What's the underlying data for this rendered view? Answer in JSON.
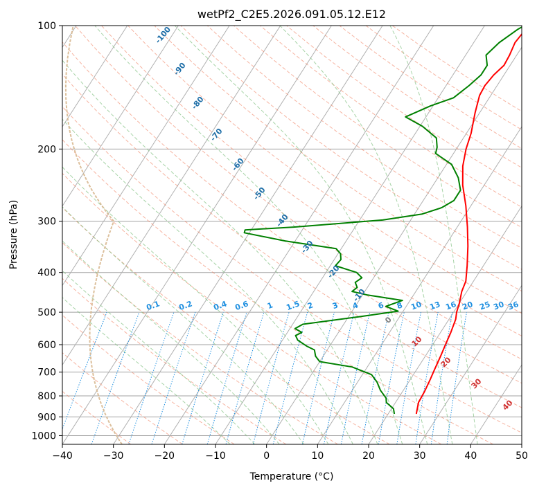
{
  "chart_data": {
    "type": "line",
    "title": "wetPf2_C2E5.2026.091.05.12.E12",
    "xlabel": "Temperature (°C)",
    "ylabel": "Pressure (hPa)",
    "xlim": [
      -40,
      50
    ],
    "ylim": [
      1050,
      100
    ],
    "y_scale": "log",
    "grid": true,
    "x_ticks": [
      "−40",
      "−30",
      "−20",
      "−10",
      "0",
      "10",
      "20",
      "30",
      "40",
      "50"
    ],
    "y_ticks": [
      {
        "p": 100,
        "label": "100"
      },
      {
        "p": 200,
        "label": "200"
      },
      {
        "p": 300,
        "label": "300"
      },
      {
        "p": 400,
        "label": "400"
      },
      {
        "p": 500,
        "label": "500"
      },
      {
        "p": 600,
        "label": "600"
      },
      {
        "p": 700,
        "label": "700"
      },
      {
        "p": 800,
        "label": "800"
      },
      {
        "p": 900,
        "label": "900"
      },
      {
        "p": 1000,
        "label": "1000"
      }
    ],
    "colors": {
      "temperature": "#ff0000",
      "dewpoint": "#008000",
      "dry_adiabat": "#f08060",
      "moist_adiabat": "#80c080",
      "mixing_ratio": "#1e8fe0",
      "isotherm": "#808080",
      "isobar": "#a0a0a0",
      "dry_label": "#d03030",
      "moist_label": "#1f6fa8",
      "mixing_label": "#1e8fe0",
      "zero_label": "#808080"
    },
    "series": [
      {
        "key": "temperature",
        "points": [
          [
            25.5,
            885
          ],
          [
            24.5,
            830
          ],
          [
            24.3,
            780
          ],
          [
            23.9,
            730
          ],
          [
            23.5,
            690
          ],
          [
            23.0,
            640
          ],
          [
            22.5,
            600
          ],
          [
            22.0,
            560
          ],
          [
            21.3,
            520
          ],
          [
            20.6,
            500
          ],
          [
            20.0,
            475
          ],
          [
            19.0,
            445
          ],
          [
            18.5,
            420
          ],
          [
            16.8,
            385
          ],
          [
            14.5,
            345
          ],
          [
            12.0,
            310
          ],
          [
            9.0,
            275
          ],
          [
            5.8,
            245
          ],
          [
            3.4,
            220
          ],
          [
            1.9,
            200
          ],
          [
            0.9,
            183
          ],
          [
            -0.9,
            163
          ],
          [
            -2.2,
            148
          ],
          [
            -2.4,
            140
          ],
          [
            -2.0,
            132
          ],
          [
            -1.2,
            125
          ],
          [
            -1.4,
            118
          ],
          [
            -1.9,
            110
          ],
          [
            -1.4,
            100
          ]
        ]
      },
      {
        "key": "dewpoint",
        "points": [
          [
            21.2,
            885
          ],
          [
            20.4,
            860
          ],
          [
            18.2,
            830
          ],
          [
            17.6,
            810
          ],
          [
            15.5,
            775
          ],
          [
            13.8,
            740
          ],
          [
            11.8,
            710
          ],
          [
            7.0,
            680
          ],
          [
            0,
            660
          ],
          [
            -1.5,
            640
          ],
          [
            -2.5,
            618
          ],
          [
            -4.5,
            605
          ],
          [
            -7.0,
            585
          ],
          [
            -8.0,
            570
          ],
          [
            -7.2,
            560
          ],
          [
            -9.0,
            548
          ],
          [
            -8.0,
            535
          ],
          [
            2.0,
            513
          ],
          [
            9.0,
            497
          ],
          [
            6.0,
            484
          ],
          [
            8.5,
            468
          ],
          [
            1.0,
            454
          ],
          [
            -2.5,
            445
          ],
          [
            -2.0,
            435
          ],
          [
            -3.0,
            423
          ],
          [
            -2.3,
            412
          ],
          [
            -4.0,
            400
          ],
          [
            -9.0,
            385
          ],
          [
            -8.7,
            372
          ],
          [
            -9.5,
            360
          ],
          [
            -11.0,
            350
          ],
          [
            -22.0,
            335
          ],
          [
            -31.0,
            320
          ],
          [
            -31.2,
            315
          ],
          [
            -22.0,
            310
          ],
          [
            -5.5,
            298
          ],
          [
            1.5,
            288
          ],
          [
            4.5,
            278
          ],
          [
            6.0,
            267
          ],
          [
            6.0,
            252
          ],
          [
            4.0,
            235
          ],
          [
            1.0,
            218
          ],
          [
            -3.5,
            205
          ],
          [
            -4.0,
            198
          ],
          [
            -5.3,
            188
          ],
          [
            -9.5,
            176
          ],
          [
            -14.0,
            167
          ],
          [
            -10.5,
            157
          ],
          [
            -7.0,
            150
          ],
          [
            -5.5,
            140
          ],
          [
            -4.5,
            132
          ],
          [
            -4.5,
            125
          ],
          [
            -6.0,
            118
          ],
          [
            -5.0,
            110
          ],
          [
            -3.0,
            102
          ],
          [
            -2.2,
            100
          ]
        ]
      }
    ],
    "dry_adiabats": [
      -30,
      -20,
      -10,
      0,
      10,
      20,
      30,
      40,
      50,
      60,
      70,
      80,
      90,
      100,
      110,
      120,
      130,
      140,
      150,
      160,
      170,
      180,
      190,
      200
    ],
    "moist_adiabats": [
      -10,
      -5,
      0,
      5,
      10,
      15,
      20,
      25,
      30,
      35,
      40
    ],
    "mixing_ratios": [
      0.1,
      0.2,
      0.4,
      0.6,
      1,
      1.5,
      2,
      3,
      4,
      6,
      8,
      10,
      13,
      16,
      20,
      25,
      30,
      36
    ],
    "isotherms": [
      -120,
      -110,
      -100,
      -90,
      -80,
      -70,
      -60,
      -50,
      -40,
      -30,
      -20,
      -10,
      0,
      10,
      20,
      30,
      40,
      50
    ],
    "wet_bulb_zero_curve": true,
    "labels": {
      "moist_isotherm": [
        "-100",
        "-90",
        "-80",
        "-70",
        "-60",
        "-50",
        "-40",
        "-30",
        "-20",
        "-10"
      ],
      "mixing": [
        "0.1",
        "0.2",
        "0.4",
        "0.6",
        "1",
        "1.5",
        "2",
        "3",
        "4",
        "6",
        "8",
        "10",
        "13",
        "16",
        "20",
        "25",
        "30",
        "36"
      ],
      "dry": [
        "10",
        "20",
        "30",
        "40"
      ],
      "zero": "0"
    }
  }
}
